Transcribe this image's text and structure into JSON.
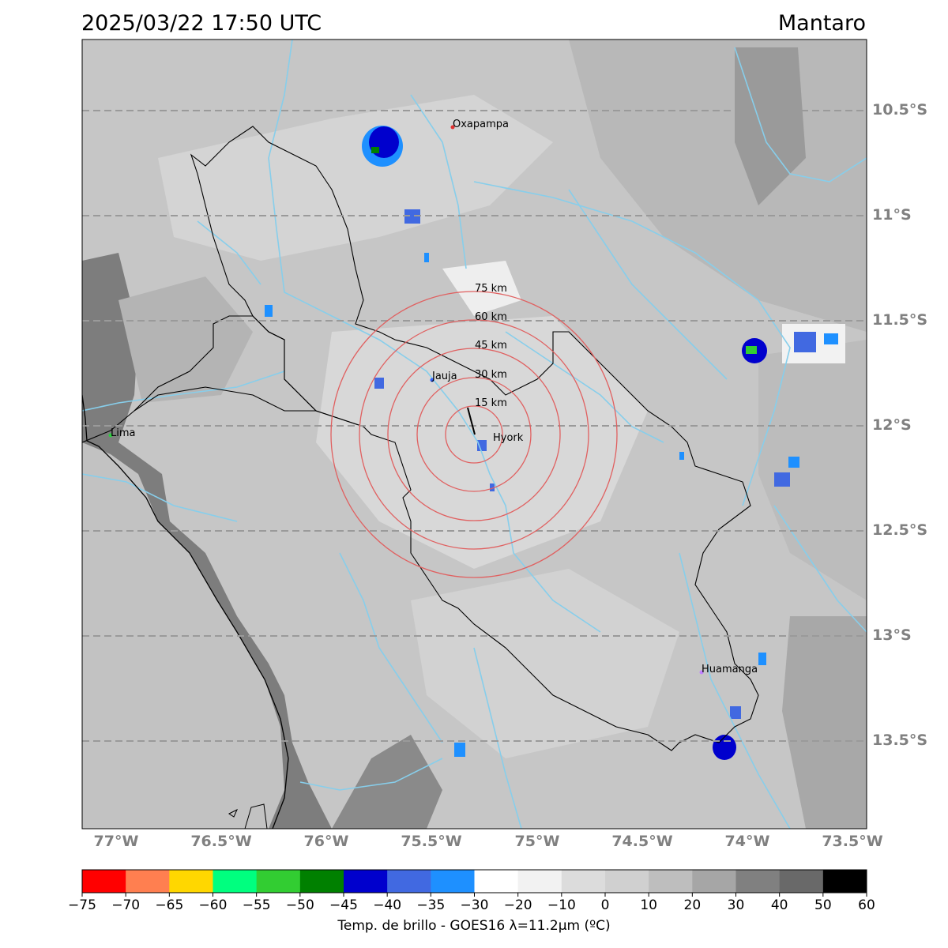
{
  "header": {
    "datetime": "2025/03/22 17:50 UTC",
    "region": "Mantaro"
  },
  "map": {
    "lat_labels": [
      "10.5°S",
      "11°S",
      "11.5°S",
      "12°S",
      "12.5°S",
      "13°S",
      "13.5°S"
    ],
    "lon_labels": [
      "77°W",
      "76.5°W",
      "76°W",
      "75.5°W",
      "75°W",
      "74.5°W",
      "74°W",
      "73.5°W"
    ],
    "cities": [
      {
        "name": "Oxapampa",
        "color": "#e03030"
      },
      {
        "name": "Jauja",
        "color": "#3060ff"
      },
      {
        "name": "Hyork",
        "color": "#000000"
      },
      {
        "name": "Lima",
        "color": "#2ecc40"
      },
      {
        "name": "Huamanga",
        "color": "#c080ff"
      }
    ],
    "range_rings": [
      "15 km",
      "30 km",
      "45 km",
      "60 km",
      "75 km"
    ],
    "ring_color": "#e06060",
    "river_color": "#87ceeb"
  },
  "colorbar": {
    "ticks": [
      "−75",
      "−70",
      "−65",
      "−60",
      "−55",
      "−50",
      "−45",
      "−40",
      "−35",
      "−30",
      "−20",
      "−10",
      "0",
      "10",
      "20",
      "30",
      "40",
      "50",
      "60"
    ],
    "colors": [
      "#ff0000",
      "#ff7f50",
      "#ffd700",
      "#00ff7f",
      "#32cd32",
      "#008000",
      "#0000cd",
      "#4169e1",
      "#1e90ff",
      "#ffffff",
      "#f2f2f2",
      "#dcdcdc",
      "#d0d0d0",
      "#bebebe",
      "#a6a6a6",
      "#808080",
      "#696969",
      "#000000"
    ],
    "label": "Temp. de brillo - GOES16 λ=11.2μm (ºC)"
  }
}
